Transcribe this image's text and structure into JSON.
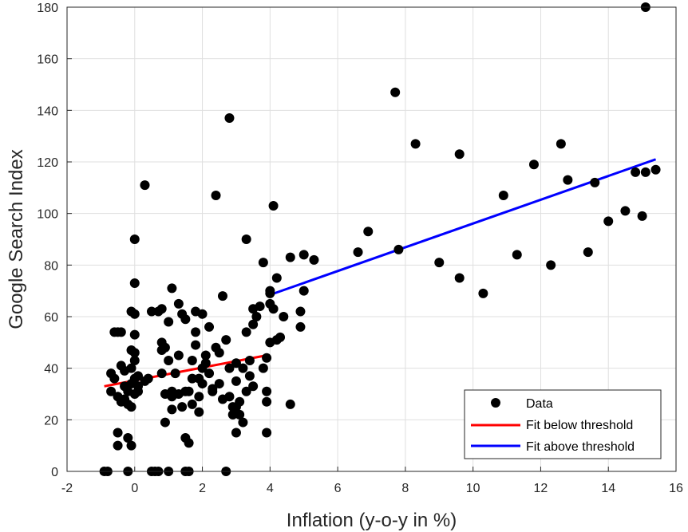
{
  "chart_data": {
    "type": "scatter",
    "xlabel": "Inflation (y-o-y in %)",
    "ylabel": "Google Search Index",
    "xlim": [
      -2,
      16
    ],
    "ylim": [
      0,
      180
    ],
    "xticks": [
      -2,
      0,
      2,
      4,
      6,
      8,
      10,
      12,
      14,
      16
    ],
    "yticks": [
      0,
      20,
      40,
      60,
      80,
      100,
      120,
      140,
      160,
      180
    ],
    "grid": true,
    "legend_position": "bottom-right",
    "series": [
      {
        "name": "Data",
        "kind": "scatter",
        "color": "#000000",
        "points": [
          [
            -0.9,
            0
          ],
          [
            -0.8,
            0
          ],
          [
            -0.7,
            38
          ],
          [
            -0.7,
            31
          ],
          [
            -0.6,
            36
          ],
          [
            -0.6,
            54
          ],
          [
            -0.5,
            54
          ],
          [
            -0.5,
            15
          ],
          [
            -0.5,
            10
          ],
          [
            -0.5,
            29
          ],
          [
            -0.4,
            54
          ],
          [
            -0.4,
            41
          ],
          [
            -0.4,
            27
          ],
          [
            -0.3,
            33
          ],
          [
            -0.3,
            39
          ],
          [
            -0.3,
            28
          ],
          [
            -0.2,
            31
          ],
          [
            -0.2,
            26
          ],
          [
            -0.2,
            13
          ],
          [
            -0.2,
            0
          ],
          [
            -0.1,
            62
          ],
          [
            -0.1,
            47
          ],
          [
            -0.1,
            40
          ],
          [
            -0.1,
            34
          ],
          [
            -0.1,
            25
          ],
          [
            -0.1,
            10
          ],
          [
            0.0,
            61
          ],
          [
            0.0,
            46
          ],
          [
            0.0,
            43
          ],
          [
            0.0,
            36
          ],
          [
            0.0,
            30
          ],
          [
            0.0,
            90
          ],
          [
            0.0,
            73
          ],
          [
            0.0,
            53
          ],
          [
            0.1,
            37
          ],
          [
            0.1,
            33
          ],
          [
            0.1,
            31
          ],
          [
            0.3,
            111
          ],
          [
            0.3,
            35
          ],
          [
            0.4,
            36
          ],
          [
            0.5,
            62
          ],
          [
            0.5,
            0
          ],
          [
            0.6,
            0
          ],
          [
            0.7,
            0
          ],
          [
            0.7,
            62
          ],
          [
            0.8,
            63
          ],
          [
            0.8,
            50
          ],
          [
            0.8,
            47
          ],
          [
            0.8,
            38
          ],
          [
            0.9,
            30
          ],
          [
            0.9,
            19
          ],
          [
            0.9,
            48
          ],
          [
            1.0,
            43
          ],
          [
            1.0,
            58
          ],
          [
            1.0,
            0
          ],
          [
            1.1,
            71
          ],
          [
            1.1,
            31
          ],
          [
            1.1,
            29
          ],
          [
            1.1,
            24
          ],
          [
            1.2,
            38
          ],
          [
            1.3,
            65
          ],
          [
            1.3,
            45
          ],
          [
            1.3,
            30
          ],
          [
            1.4,
            61
          ],
          [
            1.4,
            25
          ],
          [
            1.5,
            59
          ],
          [
            1.5,
            31
          ],
          [
            1.5,
            13
          ],
          [
            1.5,
            0
          ],
          [
            1.6,
            11
          ],
          [
            1.6,
            0
          ],
          [
            1.6,
            31
          ],
          [
            1.7,
            43
          ],
          [
            1.7,
            36
          ],
          [
            1.7,
            26
          ],
          [
            1.8,
            62
          ],
          [
            1.8,
            54
          ],
          [
            1.8,
            49
          ],
          [
            1.9,
            36
          ],
          [
            1.9,
            23
          ],
          [
            1.9,
            29
          ],
          [
            2.0,
            61
          ],
          [
            2.0,
            40
          ],
          [
            2.0,
            34
          ],
          [
            2.1,
            45
          ],
          [
            2.1,
            42
          ],
          [
            2.2,
            56
          ],
          [
            2.2,
            38
          ],
          [
            2.3,
            32
          ],
          [
            2.3,
            31
          ],
          [
            2.4,
            48
          ],
          [
            2.4,
            107
          ],
          [
            2.5,
            46
          ],
          [
            2.5,
            34
          ],
          [
            2.6,
            68
          ],
          [
            2.6,
            28
          ],
          [
            2.7,
            0
          ],
          [
            2.7,
            51
          ],
          [
            2.8,
            137
          ],
          [
            2.8,
            40
          ],
          [
            2.8,
            29
          ],
          [
            2.9,
            25
          ],
          [
            2.9,
            22
          ],
          [
            3.0,
            35
          ],
          [
            3.0,
            42
          ],
          [
            3.0,
            15
          ],
          [
            3.0,
            25
          ],
          [
            3.1,
            27
          ],
          [
            3.1,
            22
          ],
          [
            3.2,
            19
          ],
          [
            3.2,
            40
          ],
          [
            3.3,
            31
          ],
          [
            3.3,
            90
          ],
          [
            3.3,
            54
          ],
          [
            3.4,
            43
          ],
          [
            3.4,
            37
          ],
          [
            3.5,
            57
          ],
          [
            3.5,
            33
          ],
          [
            3.5,
            63
          ],
          [
            3.6,
            60
          ],
          [
            3.7,
            64
          ],
          [
            3.8,
            81
          ],
          [
            3.8,
            40
          ],
          [
            3.9,
            31
          ],
          [
            3.9,
            27
          ],
          [
            3.9,
            15
          ],
          [
            3.9,
            44
          ],
          [
            4.0,
            69
          ],
          [
            4.0,
            70
          ],
          [
            4.0,
            65
          ],
          [
            4.0,
            50
          ],
          [
            4.1,
            103
          ],
          [
            4.1,
            63
          ],
          [
            4.2,
            51
          ],
          [
            4.2,
            75
          ],
          [
            4.3,
            52
          ],
          [
            4.4,
            60
          ],
          [
            4.6,
            83
          ],
          [
            4.6,
            26
          ],
          [
            4.9,
            56
          ],
          [
            4.9,
            62
          ],
          [
            5.0,
            84
          ],
          [
            5.0,
            70
          ],
          [
            5.3,
            82
          ],
          [
            6.6,
            85
          ],
          [
            6.9,
            93
          ],
          [
            7.7,
            147
          ],
          [
            7.8,
            86
          ],
          [
            8.3,
            127
          ],
          [
            9.0,
            81
          ],
          [
            9.6,
            123
          ],
          [
            9.6,
            75
          ],
          [
            10.3,
            69
          ],
          [
            10.9,
            107
          ],
          [
            11.3,
            84
          ],
          [
            11.8,
            119
          ],
          [
            12.3,
            80
          ],
          [
            12.6,
            127
          ],
          [
            12.8,
            113
          ],
          [
            13.4,
            85
          ],
          [
            13.6,
            112
          ],
          [
            14.0,
            97
          ],
          [
            14.5,
            101
          ],
          [
            14.8,
            116
          ],
          [
            15.0,
            99
          ],
          [
            15.1,
            180
          ],
          [
            15.1,
            116
          ],
          [
            15.4,
            117
          ]
        ]
      },
      {
        "name": "Fit below threshold",
        "kind": "line",
        "color": "#ff0000",
        "points": [
          [
            -0.9,
            33
          ],
          [
            3.9,
            45
          ]
        ]
      },
      {
        "name": "Fit above threshold",
        "kind": "line",
        "color": "#0000ff",
        "points": [
          [
            3.9,
            68
          ],
          [
            15.4,
            121
          ]
        ]
      }
    ]
  }
}
